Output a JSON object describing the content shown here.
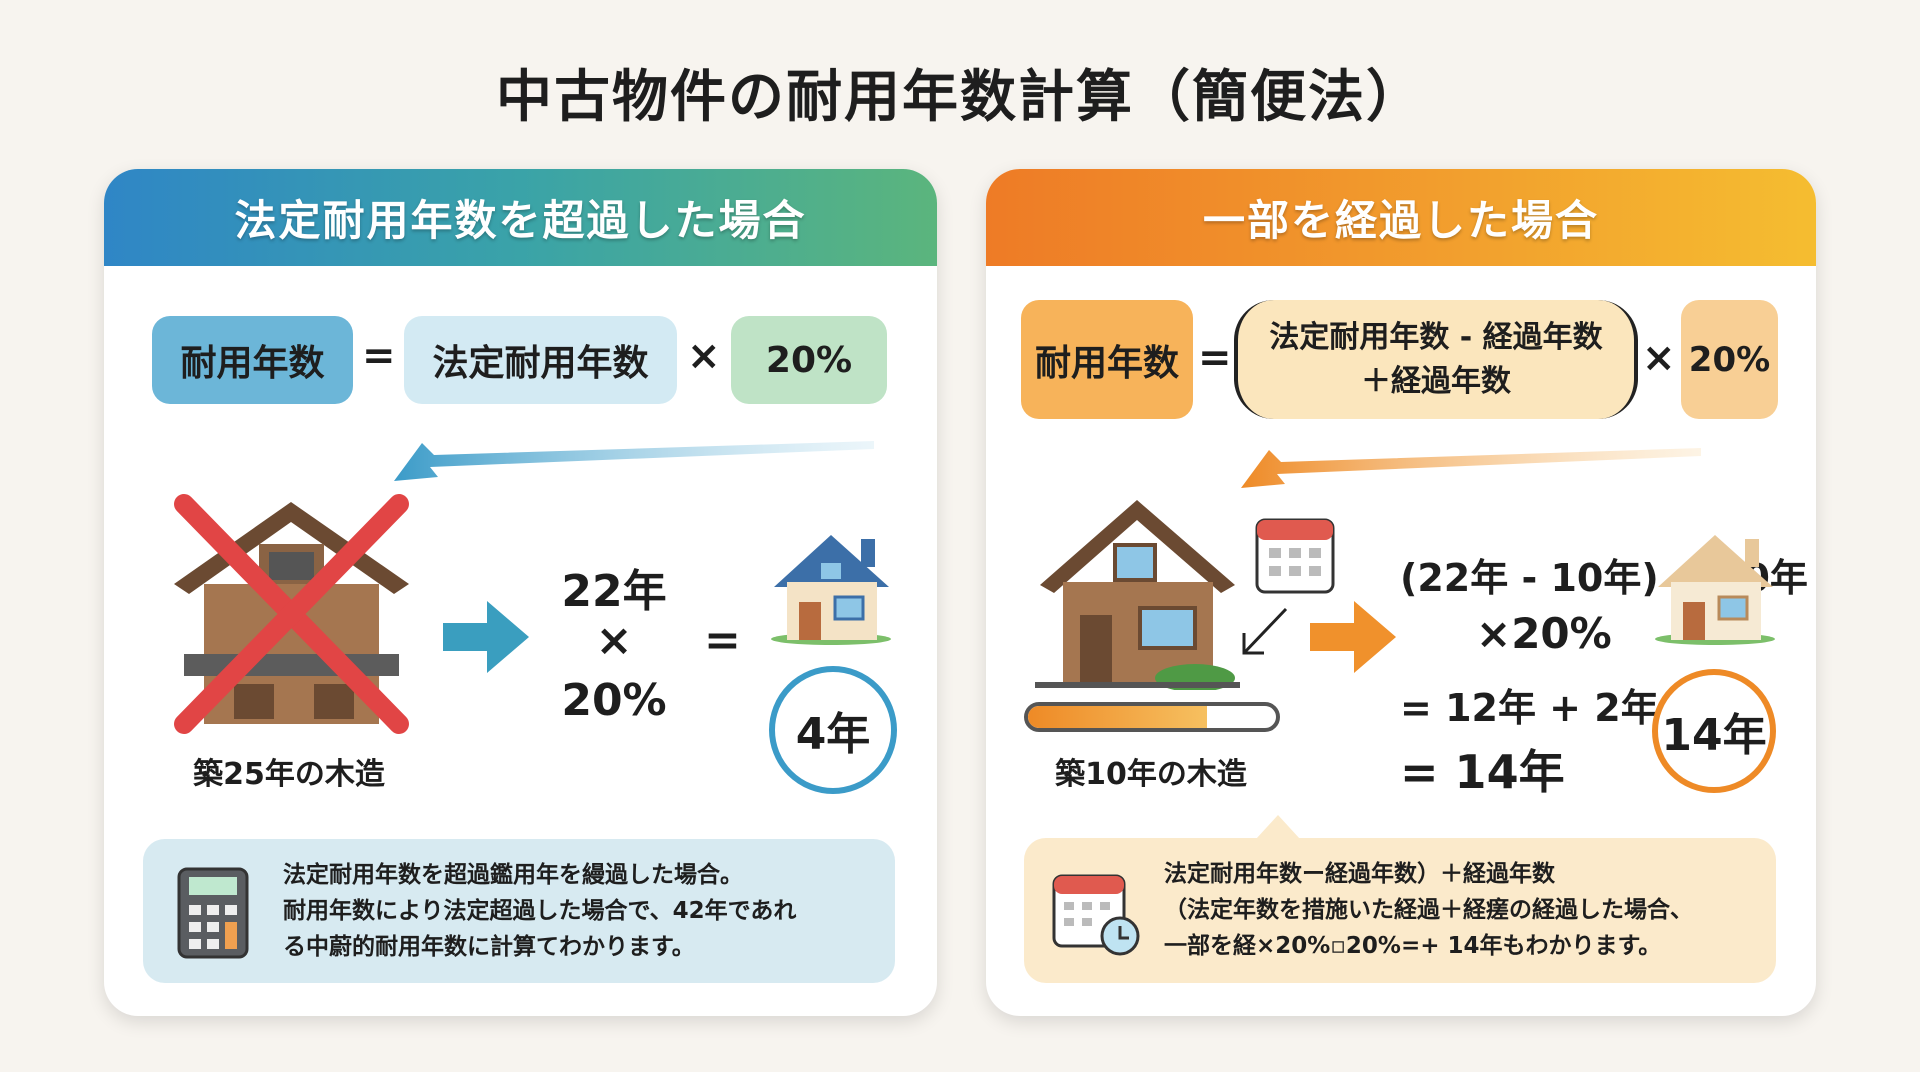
{
  "title": "中古物件の耐用年数計算（簡便法）",
  "left": {
    "header": "法定耐用年数を超過した場合",
    "formula": {
      "lhs": "耐用年数",
      "eq": "=",
      "term": "法定耐用年数",
      "times": "×",
      "rate": "20%"
    },
    "house_caption": "築25年の木造",
    "calc": {
      "line1": "22年",
      "line2": "×",
      "line3": "20%",
      "eq": "="
    },
    "result": "4年",
    "info": [
      "法定耐用年数を超過鑑用年を縵過した場合。",
      "耐用年数により法定超過した場合で、42年であれ",
      "る中蔚的耐用年数に計算てわかります。"
    ],
    "colors": {
      "lhs": "#6cb6d8",
      "term": "#d3eaf3",
      "rate": "#bfe3c6",
      "accent": "#3b9bc8"
    }
  },
  "right": {
    "header": "一部を経過した場合",
    "formula": {
      "lhs": "耐用年数",
      "eq": "=",
      "term_line1": "法定耐用年数 - 経過年数",
      "term_line2": "＋経過年数",
      "times": "×",
      "rate": "20%"
    },
    "house_caption": "築10年の木造",
    "calc": {
      "line1": "(22年 - 10年) + 10年",
      "line2": "×20%",
      "line3": "= 12年 + 2年",
      "line4": "= 14年"
    },
    "result": "14年",
    "info": [
      "法定耐用年数ー経過年数）＋経過年数",
      "（法定年数を措施いた経過＋経瘥の経過した場合、",
      "一部を経×20%▫20%=+ 14年もわかります。"
    ],
    "colors": {
      "lhs": "#f7b35a",
      "term": "#fbe6bd",
      "rate": "#f8cf95",
      "accent": "#ee8a26"
    }
  }
}
